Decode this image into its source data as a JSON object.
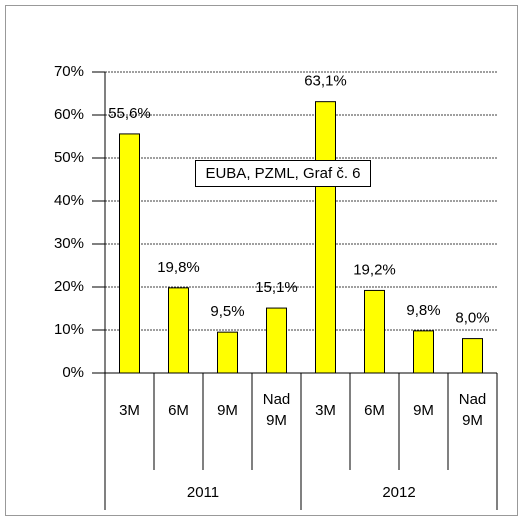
{
  "chart_data": {
    "type": "bar",
    "categories": [
      "3M",
      "6M",
      "9M",
      "Nad 9M",
      "3M",
      "6M",
      "9M",
      "Nad 9M"
    ],
    "groups": [
      "2011",
      "2012"
    ],
    "values": [
      55.6,
      19.8,
      9.5,
      15.1,
      63.1,
      19.2,
      9.8,
      8.0
    ],
    "value_labels": [
      "55,6%",
      "19,8%",
      "9,5%",
      "15,1%",
      "63,1%",
      "19,2%",
      "9,8%",
      "8,0%"
    ],
    "color": "#ffff00",
    "ylim": [
      0,
      70
    ],
    "yticks": [
      {
        "value": 0,
        "label": "0%"
      },
      {
        "value": 10,
        "label": "10%"
      },
      {
        "value": 20,
        "label": "20%"
      },
      {
        "value": 30,
        "label": "30%"
      },
      {
        "value": 40,
        "label": "40%"
      },
      {
        "value": 50,
        "label": "50%"
      },
      {
        "value": 60,
        "label": "60%"
      },
      {
        "value": 70,
        "label": "70%"
      }
    ],
    "grid": true,
    "annotation": "EUBA, PZML, Graf č. 6"
  }
}
